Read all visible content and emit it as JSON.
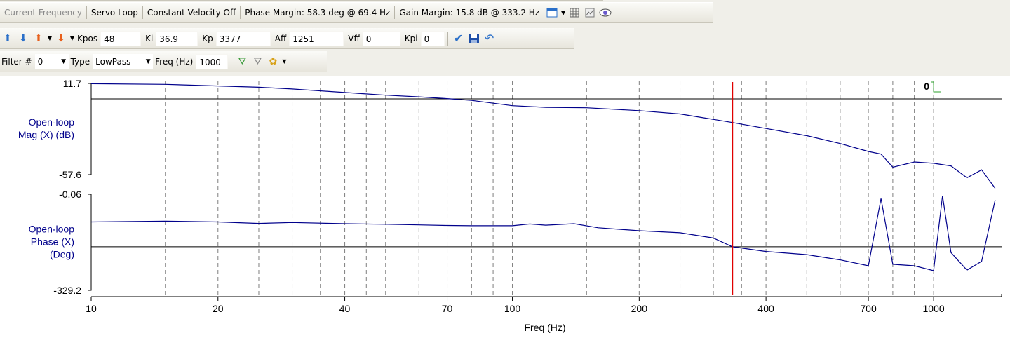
{
  "toolbar1": {
    "items": [
      "Current Frequency",
      "Servo Loop",
      "Constant Velocity Off",
      "Phase Margin: 58.3 deg @ 69.4 Hz",
      "Gain Margin: 15.8 dB @ 333.2 Hz"
    ],
    "icons": [
      "window-icon",
      "grid-icon",
      "chart-icon",
      "eye-icon"
    ]
  },
  "toolbar2": {
    "kpos_label": "Kpos",
    "kpos": "48",
    "ki_label": "Ki",
    "ki": "36.9",
    "kp_label": "Kp",
    "kp": "3377",
    "aff_label": "Aff",
    "aff": "1251",
    "vff_label": "Vff",
    "vff": "0",
    "kpi_label": "Kpi",
    "kpi": "0"
  },
  "toolbar3": {
    "filter_label": "Filter #",
    "filter": "0",
    "type_label": "Type",
    "type": "LowPass",
    "freq_label": "Freq (Hz)",
    "freq": "1000"
  },
  "colors": {
    "trace": "#00008b",
    "marker": "#e00000",
    "grid": "#7f7f7f",
    "ylabel": "#00008b"
  },
  "chart_data": [
    {
      "type": "line",
      "title": "",
      "ylabel": "Open-loop Mag (X) (dB)",
      "ylabel_lines": [
        "Open-loop",
        "Mag (X) (dB)"
      ],
      "ytick_top": "11.7",
      "ytick_bottom": "-57.6",
      "ylim": [
        -57.6,
        11.7
      ],
      "reference_y": 0,
      "marker_x": 333.2,
      "corner_label": "0",
      "x": [
        10,
        15,
        20,
        25,
        30,
        40,
        50,
        60,
        70,
        80,
        100,
        120,
        150,
        200,
        250,
        330,
        400,
        500,
        600,
        700,
        750,
        800,
        900,
        1000,
        1100,
        1200,
        1300,
        1400
      ],
      "values": [
        11.5,
        11.0,
        9.8,
        8.8,
        7.5,
        4.8,
        2.8,
        1.5,
        0.2,
        -1.2,
        -5.2,
        -6.5,
        -6.8,
        -9.0,
        -11.5,
        -17.8,
        -22.5,
        -28.0,
        -34.0,
        -40.0,
        -42.0,
        -52.0,
        -48.0,
        -49.0,
        -51.0,
        -60.0,
        -54.0,
        -68.0
      ]
    },
    {
      "type": "line",
      "title": "",
      "ylabel": "Open-loop Phase (X) (Deg)",
      "ylabel_lines": [
        "Open-loop",
        "Phase (X)",
        "(Deg)"
      ],
      "ytick_top": "-0.06",
      "ytick_bottom": "-329.2",
      "ylim": [
        -329.2,
        -0.06
      ],
      "reference_y": -180,
      "marker_x": 333.2,
      "x": [
        10,
        15,
        20,
        25,
        30,
        40,
        50,
        60,
        70,
        80,
        100,
        110,
        120,
        140,
        160,
        200,
        250,
        300,
        333,
        400,
        500,
        600,
        700,
        750,
        800,
        900,
        1000,
        1050,
        1100,
        1200,
        1300,
        1400
      ],
      "values": [
        -95,
        -92,
        -95,
        -100,
        -97,
        -101,
        -103,
        -105,
        -107,
        -108,
        -108,
        -102,
        -106,
        -101,
        -115,
        -125,
        -132,
        -150,
        -180,
        -196,
        -207,
        -225,
        -245,
        -15,
        -240,
        -245,
        -262,
        -5,
        -200,
        -260,
        -230,
        -20
      ]
    }
  ],
  "x_axis": {
    "label": "Freq (Hz)",
    "ticks": [
      10,
      20,
      40,
      70,
      100,
      200,
      400,
      700,
      1000
    ],
    "tick_labels": [
      "10",
      "20",
      "40",
      "70",
      "100",
      "200",
      "400",
      "700",
      "1000"
    ],
    "xlim": [
      10,
      1450
    ],
    "scale": "log",
    "grid_lines": [
      15,
      20,
      25,
      30,
      35,
      40,
      45,
      50,
      60,
      70,
      80,
      90,
      100,
      150,
      200,
      250,
      300,
      350,
      400,
      500,
      600,
      700,
      800,
      900,
      1000
    ]
  }
}
